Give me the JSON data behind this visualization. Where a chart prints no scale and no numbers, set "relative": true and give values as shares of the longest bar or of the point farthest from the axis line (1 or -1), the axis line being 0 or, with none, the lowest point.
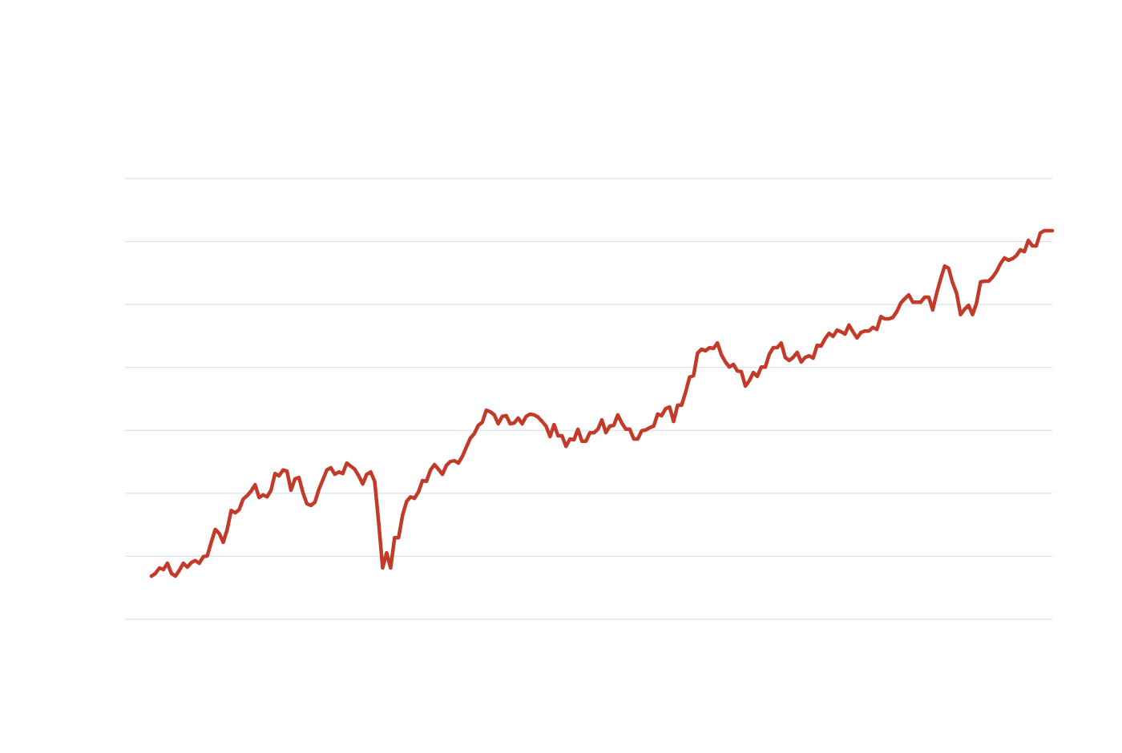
{
  "chart_data": {
    "type": "line",
    "relative": true,
    "grid": "y",
    "marker": "none",
    "line_style": "solid",
    "categories": [
      null,
      null,
      null,
      null,
      null,
      null,
      null,
      null,
      null,
      null,
      null,
      null,
      null,
      null,
      null,
      null,
      null,
      null,
      null,
      null,
      null,
      null,
      null,
      null,
      null,
      null,
      null,
      null,
      null,
      null,
      null,
      null,
      null,
      null,
      null,
      null,
      null,
      null,
      null,
      null,
      null,
      null,
      null,
      null,
      null,
      null,
      null,
      null,
      null,
      null,
      null,
      null,
      null,
      null,
      null,
      null,
      null,
      null,
      null,
      null,
      null,
      null,
      null,
      null,
      null,
      null,
      null,
      null,
      null,
      null,
      null,
      null,
      null,
      null,
      null,
      null,
      null,
      null,
      null,
      null,
      null,
      null,
      null,
      null,
      null,
      null,
      null,
      null,
      null,
      null,
      null,
      null,
      null,
      null,
      null,
      null,
      null,
      null,
      null,
      null,
      null,
      null,
      null,
      null,
      null,
      null,
      null,
      null,
      null,
      null,
      null,
      null,
      null,
      null,
      null,
      null,
      null,
      null,
      null,
      null,
      null,
      null,
      null,
      null,
      null,
      null,
      null,
      null,
      null,
      null,
      null,
      null,
      null,
      null,
      null,
      null,
      null,
      null,
      null,
      null,
      null,
      null,
      null,
      null,
      null,
      null,
      null,
      null,
      null,
      null,
      null,
      null,
      null,
      null,
      null,
      null,
      null,
      null,
      null,
      null,
      null,
      null,
      null,
      null,
      null,
      null,
      null,
      null,
      null,
      null,
      null,
      null,
      null,
      null,
      null,
      null,
      null,
      null,
      null,
      null,
      null,
      null,
      null,
      null,
      null,
      null,
      null,
      null,
      null,
      null,
      null,
      null,
      null,
      null,
      null,
      null,
      null,
      null,
      null,
      null,
      null,
      null,
      null,
      null,
      null,
      null,
      null,
      null,
      null,
      null,
      null,
      null,
      null,
      null,
      null,
      null,
      null,
      null,
      null,
      null,
      null,
      null,
      null,
      null,
      null,
      null,
      null
    ],
    "series": [
      {
        "color": "#c33a28",
        "values": [
          0.111,
          0.118,
          0.132,
          0.128,
          0.144,
          0.118,
          0.111,
          0.126,
          0.144,
          0.134,
          0.146,
          0.151,
          0.144,
          0.161,
          0.163,
          0.198,
          0.231,
          0.221,
          0.198,
          0.231,
          0.28,
          0.274,
          0.282,
          0.309,
          0.318,
          0.33,
          0.346,
          0.313,
          0.32,
          0.315,
          0.332,
          0.375,
          0.369,
          0.384,
          0.381,
          0.332,
          0.361,
          0.365,
          0.326,
          0.297,
          0.293,
          0.301,
          0.334,
          0.359,
          0.384,
          0.39,
          0.373,
          0.379,
          0.375,
          0.402,
          0.394,
          0.386,
          0.369,
          0.348,
          0.373,
          0.379,
          0.355,
          0.249,
          0.132,
          0.171,
          0.132,
          0.21,
          0.21,
          0.268,
          0.303,
          0.315,
          0.311,
          0.328,
          0.357,
          0.355,
          0.384,
          0.398,
          0.386,
          0.373,
          0.396,
          0.406,
          0.408,
          0.402,
          0.419,
          0.443,
          0.466,
          0.478,
          0.499,
          0.507,
          0.538,
          0.534,
          0.526,
          0.503,
          0.522,
          0.524,
          0.503,
          0.505,
          0.518,
          0.503,
          0.522,
          0.528,
          0.526,
          0.52,
          0.509,
          0.497,
          0.47,
          0.501,
          0.472,
          0.472,
          0.445,
          0.464,
          0.462,
          0.489,
          0.458,
          0.458,
          0.48,
          0.48,
          0.489,
          0.513,
          0.48,
          0.497,
          0.499,
          0.526,
          0.505,
          0.489,
          0.489,
          0.464,
          0.464,
          0.485,
          0.487,
          0.493,
          0.497,
          0.528,
          0.524,
          0.542,
          0.546,
          0.509,
          0.551,
          0.551,
          0.584,
          0.623,
          0.627,
          0.685,
          0.695,
          0.691,
          0.699,
          0.697,
          0.711,
          0.68,
          0.662,
          0.649,
          0.656,
          0.639,
          0.637,
          0.6,
          0.614,
          0.635,
          0.625,
          0.649,
          0.649,
          0.682,
          0.699,
          0.699,
          0.711,
          0.674,
          0.666,
          0.674,
          0.687,
          0.662,
          0.674,
          0.678,
          0.672,
          0.705,
          0.703,
          0.722,
          0.736,
          0.728,
          0.744,
          0.74,
          0.734,
          0.757,
          0.74,
          0.724,
          0.738,
          0.742,
          0.742,
          0.751,
          0.746,
          0.779,
          0.773,
          0.773,
          0.777,
          0.792,
          0.814,
          0.825,
          0.835,
          0.816,
          0.816,
          0.816,
          0.829,
          0.829,
          0.796,
          0.839,
          0.876,
          0.909,
          0.903,
          0.866,
          0.839,
          0.784,
          0.798,
          0.808,
          0.784,
          0.814,
          0.868,
          0.87,
          0.87,
          0.88,
          0.895,
          0.915,
          0.93,
          0.924,
          0.928,
          0.936,
          0.951,
          0.946,
          0.975,
          0.961,
          0.961,
          0.994,
          1,
          1,
          1
        ]
      }
    ]
  }
}
